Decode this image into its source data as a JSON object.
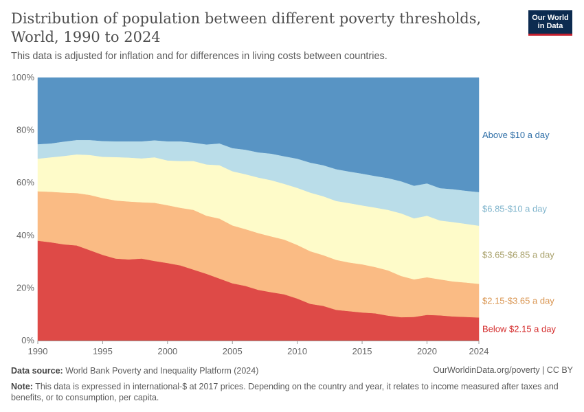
{
  "header": {
    "title_line1": "Distribution of population between different poverty thresholds,",
    "title_line2": "World, 1990 to 2024",
    "subtitle": "This data is adjusted for inflation and for differences in living costs between countries.",
    "logo_line1": "Our World",
    "logo_line2": "in Data"
  },
  "footer": {
    "source_label": "Data source:",
    "source_text": "World Bank Poverty and Inequality Platform (2024)",
    "credit": "OurWorldinData.org/poverty | CC BY",
    "note_label": "Note:",
    "note_text": "This data is expressed in international-$ at 2017 prices. Depending on the country and year, it relates to income measured after taxes and benefits, or to consumption, per capita."
  },
  "chart_data": {
    "type": "area",
    "stacked": true,
    "x": [
      1990,
      1991,
      1992,
      1993,
      1994,
      1995,
      1996,
      1997,
      1998,
      1999,
      2000,
      2001,
      2002,
      2003,
      2004,
      2005,
      2006,
      2007,
      2008,
      2009,
      2010,
      2011,
      2012,
      2013,
      2014,
      2015,
      2016,
      2017,
      2018,
      2019,
      2020,
      2021,
      2022,
      2023,
      2024
    ],
    "xticks": [
      "1990",
      "1995",
      "2000",
      "2005",
      "2010",
      "2015",
      "2020",
      "2024"
    ],
    "xtick_values": [
      1990,
      1995,
      2000,
      2005,
      2010,
      2015,
      2020,
      2024
    ],
    "yticks": [
      "0%",
      "20%",
      "40%",
      "60%",
      "80%",
      "100%"
    ],
    "ytick_values": [
      0,
      20,
      40,
      60,
      80,
      100
    ],
    "ylim": [
      0,
      100
    ],
    "series": [
      {
        "name": "Below $2.15 a day",
        "color": "#de4a47",
        "label_color": "#d42b2b",
        "values": [
          38.0,
          37.4,
          36.6,
          36.2,
          34.4,
          32.6,
          31.2,
          30.9,
          31.2,
          30.3,
          29.5,
          28.6,
          27.0,
          25.4,
          23.6,
          21.8,
          20.8,
          19.3,
          18.4,
          17.6,
          16.0,
          14.0,
          13.2,
          11.7,
          11.2,
          10.7,
          10.4,
          9.5,
          8.9,
          9.0,
          9.8,
          9.6,
          9.2,
          9.0,
          8.8
        ]
      },
      {
        "name": "$2.15-$3.65 a day",
        "color": "#fabb84",
        "label_color": "#d9944f",
        "values": [
          18.8,
          19.2,
          19.7,
          19.9,
          21.0,
          21.6,
          22.1,
          22.0,
          21.4,
          22.1,
          22.0,
          21.9,
          22.7,
          22.1,
          22.8,
          22.0,
          21.6,
          21.6,
          21.2,
          20.8,
          20.4,
          20.0,
          19.3,
          19.0,
          18.5,
          18.3,
          17.6,
          17.2,
          15.7,
          14.3,
          14.3,
          13.7,
          13.3,
          13.1,
          12.8
        ]
      },
      {
        "name": "$3.65-$6.85 a day",
        "color": "#fefbc9",
        "label_color": "#a8a06a",
        "values": [
          12.4,
          13.1,
          13.9,
          14.7,
          15.2,
          15.7,
          16.5,
          16.7,
          16.7,
          17.3,
          17.0,
          17.8,
          18.6,
          19.5,
          20.3,
          20.6,
          20.9,
          21.1,
          21.4,
          21.2,
          21.7,
          22.3,
          22.4,
          22.4,
          22.6,
          22.4,
          22.6,
          23.0,
          23.8,
          23.2,
          23.4,
          22.4,
          22.6,
          22.3,
          22.1
        ]
      },
      {
        "name": "$6.85-$10 a day",
        "color": "#badde9",
        "label_color": "#7fb4cc",
        "values": [
          5.5,
          5.3,
          5.5,
          5.5,
          5.7,
          6.0,
          6.0,
          6.2,
          6.5,
          6.5,
          7.3,
          7.5,
          7.0,
          7.6,
          8.3,
          8.8,
          9.3,
          9.6,
          10.1,
          10.5,
          11.1,
          11.4,
          11.8,
          12.1,
          12.0,
          12.1,
          12.0,
          12.1,
          12.2,
          12.4,
          12.3,
          12.3,
          12.5,
          12.6,
          12.8
        ]
      },
      {
        "name": "Above $10 a day",
        "color": "#5894c4",
        "label_color": "#2f6fa7",
        "values": [
          25.3,
          25.0,
          24.3,
          23.7,
          23.7,
          24.1,
          24.2,
          24.2,
          24.2,
          23.8,
          24.2,
          24.2,
          24.7,
          25.4,
          25.0,
          26.8,
          27.4,
          28.4,
          28.9,
          29.9,
          30.8,
          32.3,
          33.3,
          34.8,
          35.7,
          36.5,
          37.4,
          38.2,
          39.4,
          41.1,
          40.2,
          42.0,
          42.4,
          43.0,
          43.5
        ]
      }
    ]
  }
}
